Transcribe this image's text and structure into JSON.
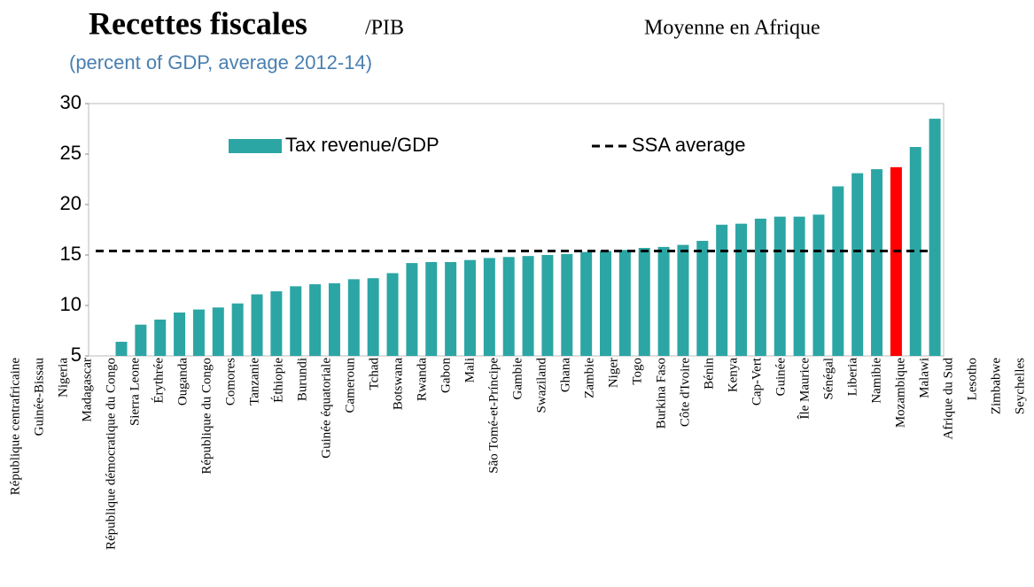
{
  "chart_data": {
    "type": "bar",
    "title": "Recettes fiscales",
    "title_suffix": "/PIB",
    "annotation": "Moyenne en Afrique",
    "subtitle": "(percent of GDP, average 2012-14)",
    "categories": [
      "République centrafricaine",
      "Guinée-Bissau",
      "Nigeria",
      "Madagascar",
      "République démocratique du Congo",
      "Sierra Leone",
      "Érythrée",
      "Ouganda",
      "République du Congo",
      "Comores",
      "Tanzanie",
      "Éthiopie",
      "Burundi",
      "Guinée équatoriale",
      "Cameroun",
      "Tchad",
      "Botswana",
      "Rwanda",
      "Gabon",
      "Mali",
      "São Tomé-et-Príncipe",
      "Gambie",
      "Swaziland",
      "Ghana",
      "Zambie",
      "Niger",
      "Togo",
      "Burkina Faso",
      "Côte d'Ivoire",
      "Bénin",
      "Kenya",
      "Cap-Vert",
      "Guinée",
      "Île Maurice",
      "Sénégal",
      "Liberia",
      "Namibie",
      "Mozambique",
      "Malawi",
      "Afrique du Sud",
      "Lesotho",
      "Zimbabwe",
      "Seychelles"
    ],
    "series": [
      {
        "name": "Tax revenue/GDP",
        "color": "#2ca6a4",
        "values": [
          6.4,
          8.1,
          8.6,
          9.3,
          9.6,
          9.8,
          10.2,
          11.1,
          11.4,
          11.9,
          12.1,
          12.2,
          12.6,
          12.7,
          13.2,
          14.2,
          14.3,
          14.3,
          14.5,
          14.7,
          14.8,
          14.9,
          15.0,
          15.1,
          15.3,
          15.4,
          15.5,
          15.7,
          15.8,
          16.0,
          16.4,
          18.0,
          18.1,
          18.6,
          18.8,
          18.8,
          19.0,
          21.8,
          23.1,
          23.5,
          23.7,
          25.7,
          28.5
        ],
        "colors": [
          "#2ca6a4",
          "#2ca6a4",
          "#2ca6a4",
          "#2ca6a4",
          "#2ca6a4",
          "#2ca6a4",
          "#2ca6a4",
          "#2ca6a4",
          "#2ca6a4",
          "#2ca6a4",
          "#2ca6a4",
          "#2ca6a4",
          "#2ca6a4",
          "#2ca6a4",
          "#2ca6a4",
          "#2ca6a4",
          "#2ca6a4",
          "#2ca6a4",
          "#2ca6a4",
          "#2ca6a4",
          "#2ca6a4",
          "#2ca6a4",
          "#2ca6a4",
          "#2ca6a4",
          "#2ca6a4",
          "#2ca6a4",
          "#2ca6a4",
          "#2ca6a4",
          "#2ca6a4",
          "#2ca6a4",
          "#2ca6a4",
          "#2ca6a4",
          "#2ca6a4",
          "#2ca6a4",
          "#2ca6a4",
          "#2ca6a4",
          "#2ca6a4",
          "#2ca6a4",
          "#2ca6a4",
          "#2ca6a4",
          "#ff0000",
          "#2ca6a4",
          "#2ca6a4"
        ]
      }
    ],
    "reference_line": {
      "name": "SSA average",
      "value": 15.4,
      "color": "#000000"
    },
    "ylim": [
      5,
      30
    ],
    "yticks": [
      5,
      10,
      15,
      20,
      25,
      30
    ],
    "grid": false
  }
}
